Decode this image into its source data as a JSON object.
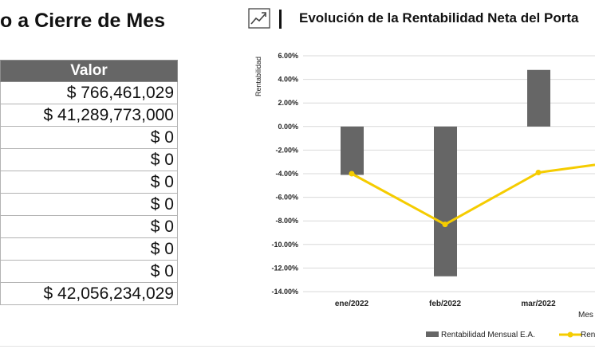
{
  "left_panel": {
    "title": "o a Cierre de Mes",
    "table": {
      "header": "Valor",
      "values": [
        "$ 766,461,029",
        "$ 41,289,773,000",
        "$ 0",
        "$ 0",
        "$ 0",
        "$ 0",
        "$ 0",
        "$ 0",
        "$ 0",
        "$ 42,056,234,029"
      ]
    }
  },
  "right_panel": {
    "title": "Evolución de la Rentabilidad Neta del Porta",
    "icon": "trend-chart-icon"
  },
  "chart_data": {
    "type": "bar",
    "categories": [
      "ene/2022",
      "feb/2022",
      "mar/2022"
    ],
    "series": [
      {
        "name": "Rentabilidad Mensual E.A.",
        "type": "bar",
        "color": "#666666",
        "values": [
          -4.1,
          -12.7,
          4.8
        ]
      },
      {
        "name": "Rent",
        "type": "line",
        "color": "#f5cc00",
        "values": [
          -4.0,
          -8.3,
          -3.9
        ]
      }
    ],
    "ylim": [
      -14,
      6
    ],
    "yticks": [
      "6.00%",
      "4.00%",
      "2.00%",
      "0.00%",
      "-2.00%",
      "-4.00%",
      "-6.00%",
      "-8.00%",
      "-10.00%",
      "-12.00%",
      "-14.00%"
    ],
    "ylabel": "Rentabilidad",
    "xlabel": "Mes",
    "grid": true,
    "legend_position": "bottom"
  }
}
